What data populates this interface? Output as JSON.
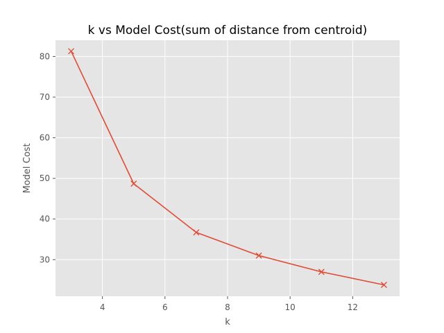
{
  "chart_data": {
    "type": "line",
    "title": "k vs Model Cost(sum of distance from centroid)",
    "xlabel": "k",
    "ylabel": "Model Cost",
    "xlim": [
      2.5,
      13.5
    ],
    "ylim": [
      21.0,
      84.0
    ],
    "xticks": [
      4,
      6,
      8,
      10,
      12
    ],
    "yticks": [
      30,
      40,
      50,
      60,
      70,
      80
    ],
    "grid": true,
    "marker": "x",
    "series": [
      {
        "color": "#e24a33",
        "x": [
          3,
          5,
          7,
          9,
          11,
          13
        ],
        "y": [
          81.3,
          48.7,
          36.7,
          31.0,
          27.0,
          23.8
        ]
      }
    ],
    "colors": {
      "plot_background": "#e5e5e5",
      "grid": "#ffffff",
      "line": "#e24a33",
      "text": "#555555"
    }
  }
}
